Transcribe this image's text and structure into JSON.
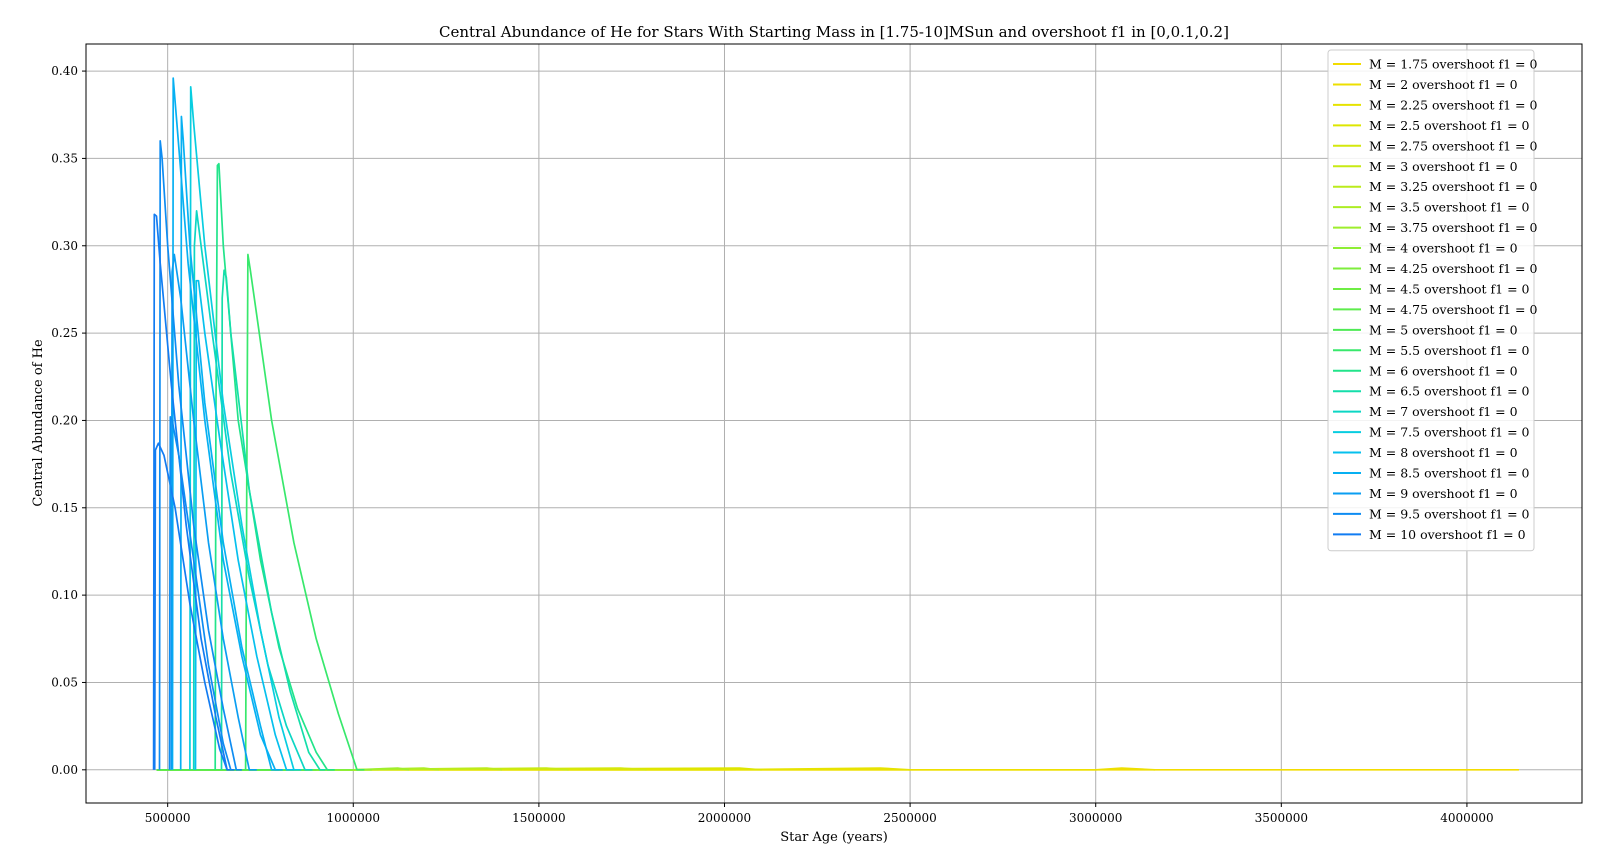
{
  "chart_data": {
    "type": "line",
    "title": "Central Abundance of He for Stars With Starting Mass in [1.75-10]MSun and overshoot f1 in [0,0.1,0.2]",
    "xlabel": "Star Age (years)",
    "ylabel": "Central Abundance of He",
    "xlim": [
      280000,
      4310000
    ],
    "ylim": [
      -0.019,
      0.4155
    ],
    "x_ticks": [
      500000,
      1000000,
      1500000,
      2000000,
      2500000,
      3000000,
      3500000,
      4000000
    ],
    "x_tick_labels": [
      "500000",
      "1000000",
      "1500000",
      "2000000",
      "2500000",
      "3000000",
      "3500000",
      "4000000"
    ],
    "y_ticks": [
      0.0,
      0.05,
      0.1,
      0.15,
      0.2,
      0.25,
      0.3,
      0.35,
      0.4
    ],
    "y_tick_labels": [
      "0.00",
      "0.05",
      "0.10",
      "0.15",
      "0.20",
      "0.25",
      "0.30",
      "0.35",
      "0.40"
    ],
    "grid": true,
    "legend_position": "top-right",
    "series": [
      {
        "name": "M = 1.75 overshoot f1 = 0",
        "color": "#f2dc00",
        "x": [
          470000,
          1000000,
          2000000,
          3000000,
          4000000,
          4140000
        ],
        "y": [
          0.0,
          0.0,
          0.0,
          0.0,
          0.0,
          0.0
        ]
      },
      {
        "name": "M = 2 overshoot f1 = 0",
        "color": "#eddf00",
        "x": [
          470000,
          1000000,
          2000000,
          3000000,
          3070000,
          3160000
        ],
        "y": [
          0.0,
          0.0,
          0.0,
          0.0,
          0.001,
          0.0
        ]
      },
      {
        "name": "M = 2.25 overshoot f1 = 0",
        "color": "#e6e300",
        "x": [
          470000,
          1000000,
          2000000,
          2420000,
          2500000
        ],
        "y": [
          0.0,
          0.0,
          0.0,
          0.001,
          0.0
        ]
      },
      {
        "name": "M = 2.5 overshoot f1 = 0",
        "color": "#dde600",
        "x": [
          470000,
          1000000,
          2040000,
          2100000
        ],
        "y": [
          0.0,
          0.0,
          0.001,
          0.0
        ]
      },
      {
        "name": "M = 2.75 overshoot f1 = 0",
        "color": "#d4e80c",
        "x": [
          470000,
          1000000,
          1720000,
          1790000
        ],
        "y": [
          0.0,
          0.0,
          0.001,
          0.0
        ]
      },
      {
        "name": "M = 3 overshoot f1 = 0",
        "color": "#c8ea14",
        "x": [
          470000,
          1000000,
          1520000,
          1580000
        ],
        "y": [
          0.0,
          0.0,
          0.001,
          0.0
        ]
      },
      {
        "name": "M = 3.25 overshoot f1 = 0",
        "color": "#bbeb1c",
        "x": [
          470000,
          1000000,
          1360000,
          1400000
        ],
        "y": [
          0.0,
          0.0,
          0.001,
          0.0
        ]
      },
      {
        "name": "M = 3.5 overshoot f1 = 0",
        "color": "#aded24",
        "x": [
          470000,
          1000000,
          1190000,
          1230000
        ],
        "y": [
          0.0,
          0.0,
          0.001,
          0.0
        ]
      },
      {
        "name": "M = 3.75 overshoot f1 = 0",
        "color": "#9eee2c",
        "x": [
          470000,
          1000000,
          1120000,
          1150000
        ],
        "y": [
          0.0,
          0.0,
          0.001,
          0.0
        ]
      },
      {
        "name": "M = 4 overshoot f1 = 0",
        "color": "#8eee34",
        "x": [
          470000,
          1000000,
          1050000
        ],
        "y": [
          0.0,
          0.0,
          0.0
        ]
      },
      {
        "name": "M = 4.25 overshoot f1 = 0",
        "color": "#7eee3c",
        "x": [
          470000,
          950000,
          1000000
        ],
        "y": [
          0.0,
          0.0,
          0.0
        ]
      },
      {
        "name": "M = 4.5 overshoot f1 = 0",
        "color": "#6eed44",
        "x": [
          470000,
          900000,
          950000
        ],
        "y": [
          0.0,
          0.0,
          0.0
        ]
      },
      {
        "name": "M = 4.75 overshoot f1 = 0",
        "color": "#5eec4c",
        "x": [
          470000,
          860000,
          900000
        ],
        "y": [
          0.0,
          0.0,
          0.0
        ]
      },
      {
        "name": "M = 5 overshoot f1 = 0",
        "color": "#4eea54",
        "x": [
          470000,
          830000,
          870000
        ],
        "y": [
          0.0,
          0.0,
          0.0
        ]
      },
      {
        "name": "M = 5.5 overshoot f1 = 0",
        "color": "#38e86c",
        "x": [
          710000,
          712000,
          716000,
          722000,
          740000,
          780000,
          840000,
          900000,
          960000,
          1010000,
          1030000
        ],
        "y": [
          0.0,
          0.12,
          0.295,
          0.287,
          0.26,
          0.2,
          0.13,
          0.075,
          0.032,
          0.0,
          0.0
        ]
      },
      {
        "name": "M = 6 overshoot f1 = 0",
        "color": "#22e48a",
        "x": [
          628000,
          630000,
          634000,
          638000,
          650000,
          690000,
          750000,
          800000,
          850000,
          900000,
          930000,
          950000
        ],
        "y": [
          0.0,
          0.2,
          0.346,
          0.347,
          0.3,
          0.2,
          0.12,
          0.07,
          0.035,
          0.01,
          0.0,
          0.0
        ]
      },
      {
        "name": "M = 6.5 overshoot f1 = 0",
        "color": "#14deaa",
        "x": [
          645000,
          647000,
          652000,
          658000,
          670000,
          720000,
          780000,
          830000,
          880000,
          910000,
          925000
        ],
        "y": [
          0.0,
          0.27,
          0.286,
          0.282,
          0.25,
          0.16,
          0.09,
          0.045,
          0.01,
          0.0,
          0.0
        ]
      },
      {
        "name": "M = 7 overshoot f1 = 0",
        "color": "#0cd6c4",
        "x": [
          570000,
          572000,
          578000,
          590000,
          620000,
          670000,
          720000,
          770000,
          820000,
          870000,
          890000
        ],
        "y": [
          0.0,
          0.3,
          0.32,
          0.3,
          0.25,
          0.17,
          0.11,
          0.06,
          0.025,
          0.0,
          0.0
        ]
      },
      {
        "name": "M = 7.5 overshoot f1 = 0",
        "color": "#08cde0",
        "x": [
          560000,
          562000,
          570000,
          600000,
          650000,
          700000,
          750000,
          800000,
          840000,
          860000
        ],
        "y": [
          0.0,
          0.391,
          0.37,
          0.3,
          0.21,
          0.14,
          0.08,
          0.03,
          0.0,
          0.0
        ]
      },
      {
        "name": "M = 8 overshoot f1 = 0",
        "color": "#06c0ee",
        "x": [
          575000,
          577000,
          583000,
          600000,
          640000,
          690000,
          740000,
          790000,
          820000,
          840000
        ],
        "y": [
          0.0,
          0.28,
          0.28,
          0.25,
          0.19,
          0.12,
          0.065,
          0.02,
          0.0,
          0.0
        ]
      },
      {
        "name": "M = 8.5 overshoot f1 = 0",
        "color": "#06b0f2",
        "x": [
          513000,
          515000,
          525000,
          555000,
          600000,
          650000,
          700000,
          750000,
          790000,
          810000
        ],
        "y": [
          0.0,
          0.396,
          0.37,
          0.29,
          0.2,
          0.12,
          0.065,
          0.02,
          0.0,
          0.0
        ]
      },
      {
        "name": "M = 8.5 overshoot f1 = 0",
        "color": "#06b0f2",
        "x": [
          535000,
          537000,
          542000,
          560000,
          600000,
          650000,
          700000,
          750000,
          780000,
          800000
        ],
        "y": [
          0.0,
          0.374,
          0.36,
          0.3,
          0.21,
          0.13,
          0.07,
          0.025,
          0.0,
          0.0
        ]
      },
      {
        "name": "M = 9 overshoot f1 = 0",
        "color": "#0a9ef2",
        "x": [
          510000,
          512000,
          518000,
          535000,
          570000,
          610000,
          650000,
          690000,
          720000,
          740000
        ],
        "y": [
          0.0,
          0.285,
          0.295,
          0.27,
          0.2,
          0.13,
          0.075,
          0.03,
          0.0,
          0.0
        ]
      },
      {
        "name": "M = 9.5 overshoot f1 = 0",
        "color": "#0e8cf2",
        "x": [
          478000,
          480000,
          485000,
          500000,
          530000,
          570000,
          610000,
          650000,
          685000,
          700000
        ],
        "y": [
          0.0,
          0.36,
          0.35,
          0.3,
          0.22,
          0.14,
          0.08,
          0.035,
          0.0,
          0.0
        ]
      },
      {
        "name": "M = 10 overshoot f1 = 0",
        "color": "#127cf2",
        "x": [
          462000,
          464000,
          470000,
          480000,
          510000,
          550000,
          590000,
          630000,
          660000,
          680000
        ],
        "y": [
          0.0,
          0.318,
          0.317,
          0.29,
          0.22,
          0.14,
          0.075,
          0.03,
          0.0,
          0.0
        ]
      },
      {
        "name": "M = 10 overshoot f1 = 0",
        "color": "#127cf2",
        "x": [
          465000,
          467000,
          475000,
          490000,
          520000,
          560000,
          600000,
          640000,
          660000
        ],
        "y": [
          0.0,
          0.183,
          0.187,
          0.18,
          0.15,
          0.095,
          0.05,
          0.012,
          0.0
        ]
      },
      {
        "name": "M = 9.5 overshoot f1 = 0",
        "color": "#0e8cf2",
        "x": [
          505000,
          507000,
          512000,
          530000,
          570000,
          610000,
          650000,
          670000
        ],
        "y": [
          0.0,
          0.202,
          0.2,
          0.18,
          0.12,
          0.06,
          0.015,
          0.0
        ]
      }
    ]
  }
}
